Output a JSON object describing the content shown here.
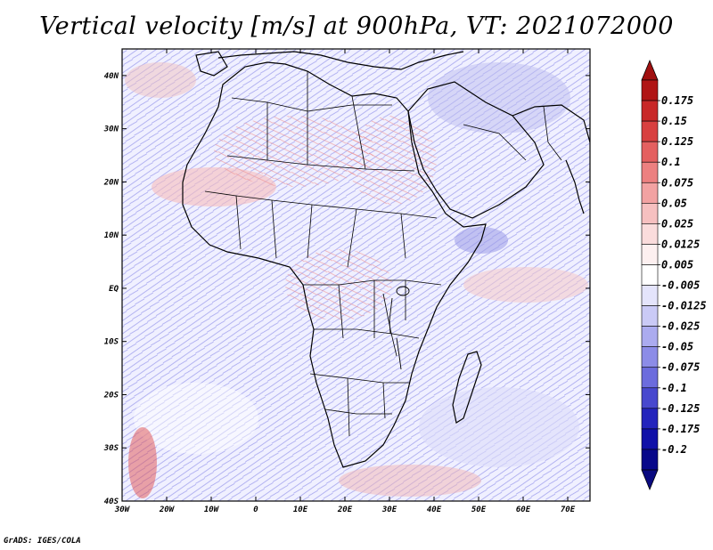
{
  "title": "Vertical velocity [m/s] at 900hPa, VT: 2021072000",
  "credit": "GrADS: IGES/COLA",
  "map": {
    "lon_range": [
      -30,
      75
    ],
    "lat_range": [
      -40,
      45
    ],
    "lon_ticks": [
      "30W",
      "20W",
      "10W",
      "0",
      "10E",
      "20E",
      "30E",
      "40E",
      "50E",
      "60E",
      "70E"
    ],
    "lat_ticks": [
      "40N",
      "30N",
      "20N",
      "10N",
      "EQ",
      "10S",
      "20S",
      "30S",
      "40S"
    ],
    "background_color": "#f2f2ff"
  },
  "colorbar": {
    "labels": [
      "0.175",
      "0.15",
      "0.125",
      "0.1",
      "0.075",
      "0.05",
      "0.025",
      "0.0125",
      "0.005",
      "-0.005",
      "-0.0125",
      "-0.025",
      "-0.05",
      "-0.075",
      "-0.1",
      "-0.125",
      "-0.175",
      "-0.2"
    ],
    "colors": [
      "#b01515",
      "#c82828",
      "#d84040",
      "#e46060",
      "#ec8080",
      "#f2a2a2",
      "#f6c0c0",
      "#fadcdc",
      "#fdf0f0",
      "#ffffff",
      "#e4e4fb",
      "#cacaf6",
      "#ababef",
      "#8c8ce7",
      "#6c6cdd",
      "#4848ce",
      "#2424bc",
      "#1010a8",
      "#08088a"
    ],
    "top_arrow_color": "#a01010",
    "bottom_arrow_color": "#0a0a80"
  }
}
